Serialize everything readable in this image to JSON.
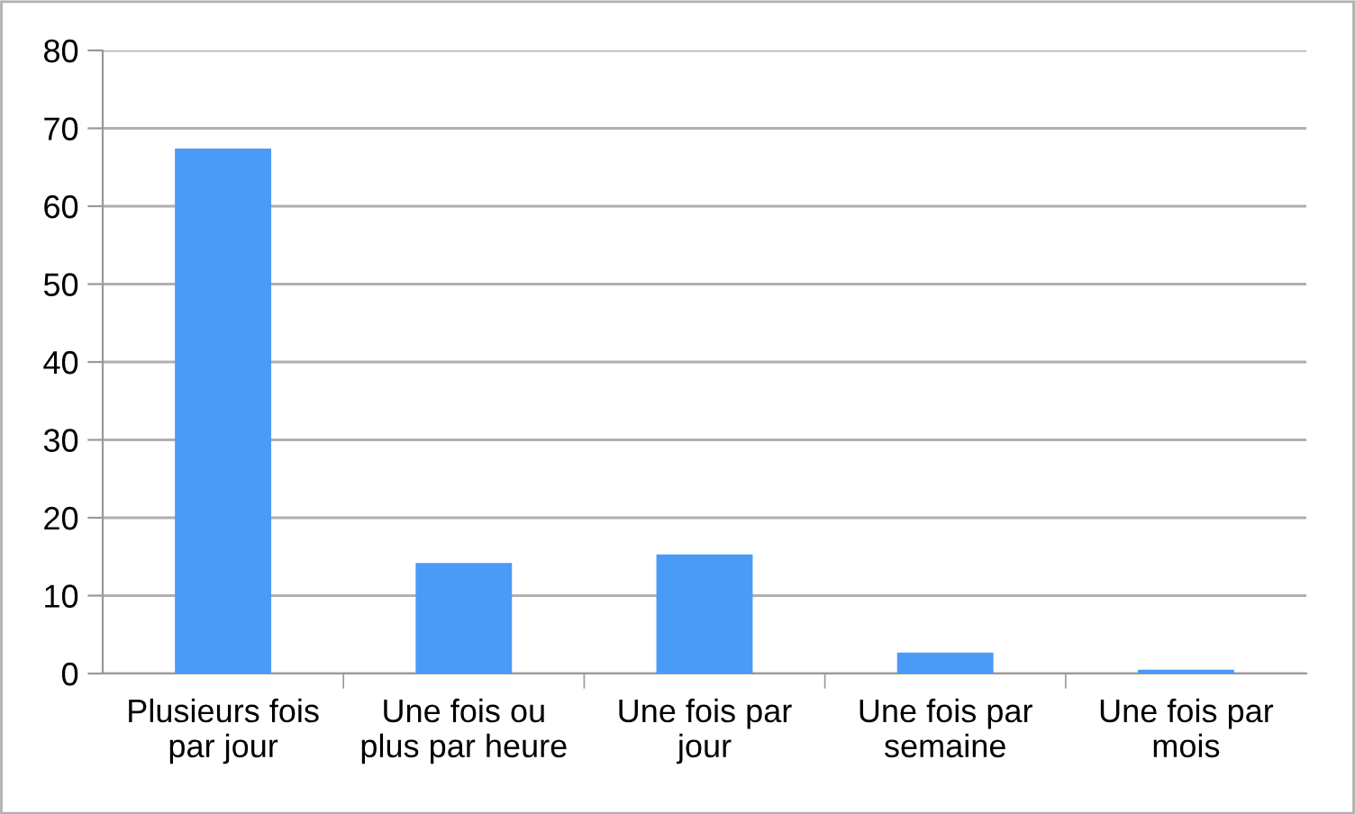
{
  "chart_data": {
    "type": "bar",
    "categories": [
      "Plusieurs fois\npar jour",
      "Une fois ou\nplus par heure",
      "Une fois par\njour",
      "Une fois par\nsemaine",
      "Une fois par\nmois"
    ],
    "values": [
      67.4,
      14.2,
      15.3,
      2.7,
      0.5
    ],
    "color": "#4a9af8",
    "ylim": [
      0,
      80
    ],
    "yticks": [
      0,
      10,
      20,
      30,
      40,
      50,
      60,
      70,
      80
    ],
    "grid": "y",
    "legend": false
  }
}
